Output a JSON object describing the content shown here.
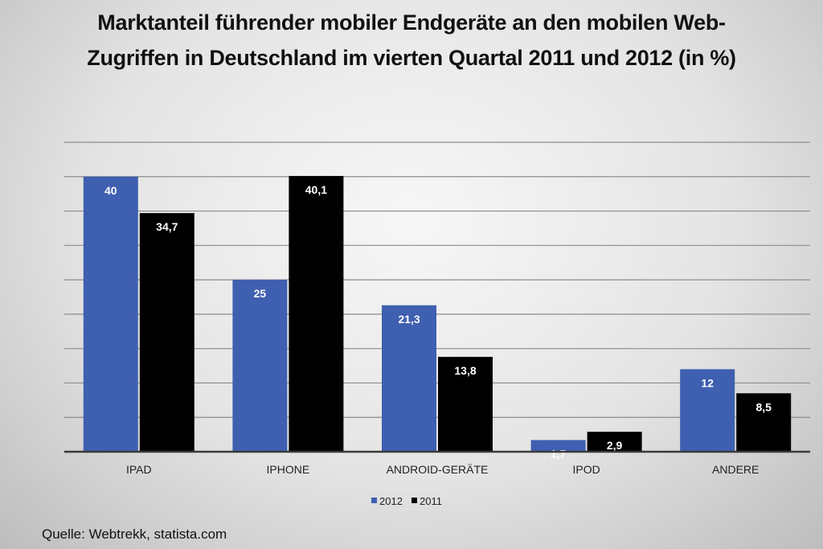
{
  "chart_data": {
    "type": "bar",
    "title_line1": "Marktanteil führender mobiler Endgeräte an den mobilen Web-",
    "title_line2": "Zugriffen in Deutschland im vierten Quartal 2011 und 2012 (in %)",
    "categories": [
      "IPAD",
      "IPHONE",
      "ANDROID-GERÄTE",
      "IPOD",
      "ANDERE"
    ],
    "series": [
      {
        "name": "2012",
        "color": "#3f5fb0",
        "values": [
          40,
          25,
          21.3,
          1.7,
          12
        ],
        "labels": [
          "40",
          "25",
          "21,3",
          "1,7",
          "12"
        ]
      },
      {
        "name": "2011",
        "color": "#000000",
        "values": [
          34.7,
          40.1,
          13.8,
          2.9,
          8.5
        ],
        "labels": [
          "34,7",
          "40,1",
          "13,8",
          "2,9",
          "8,5"
        ]
      }
    ],
    "ylim": [
      0,
      45
    ],
    "grid": true,
    "legend": "bottom-center",
    "xlabel": "",
    "ylabel": ""
  },
  "source": "Quelle: Webtrekk, statista.com"
}
